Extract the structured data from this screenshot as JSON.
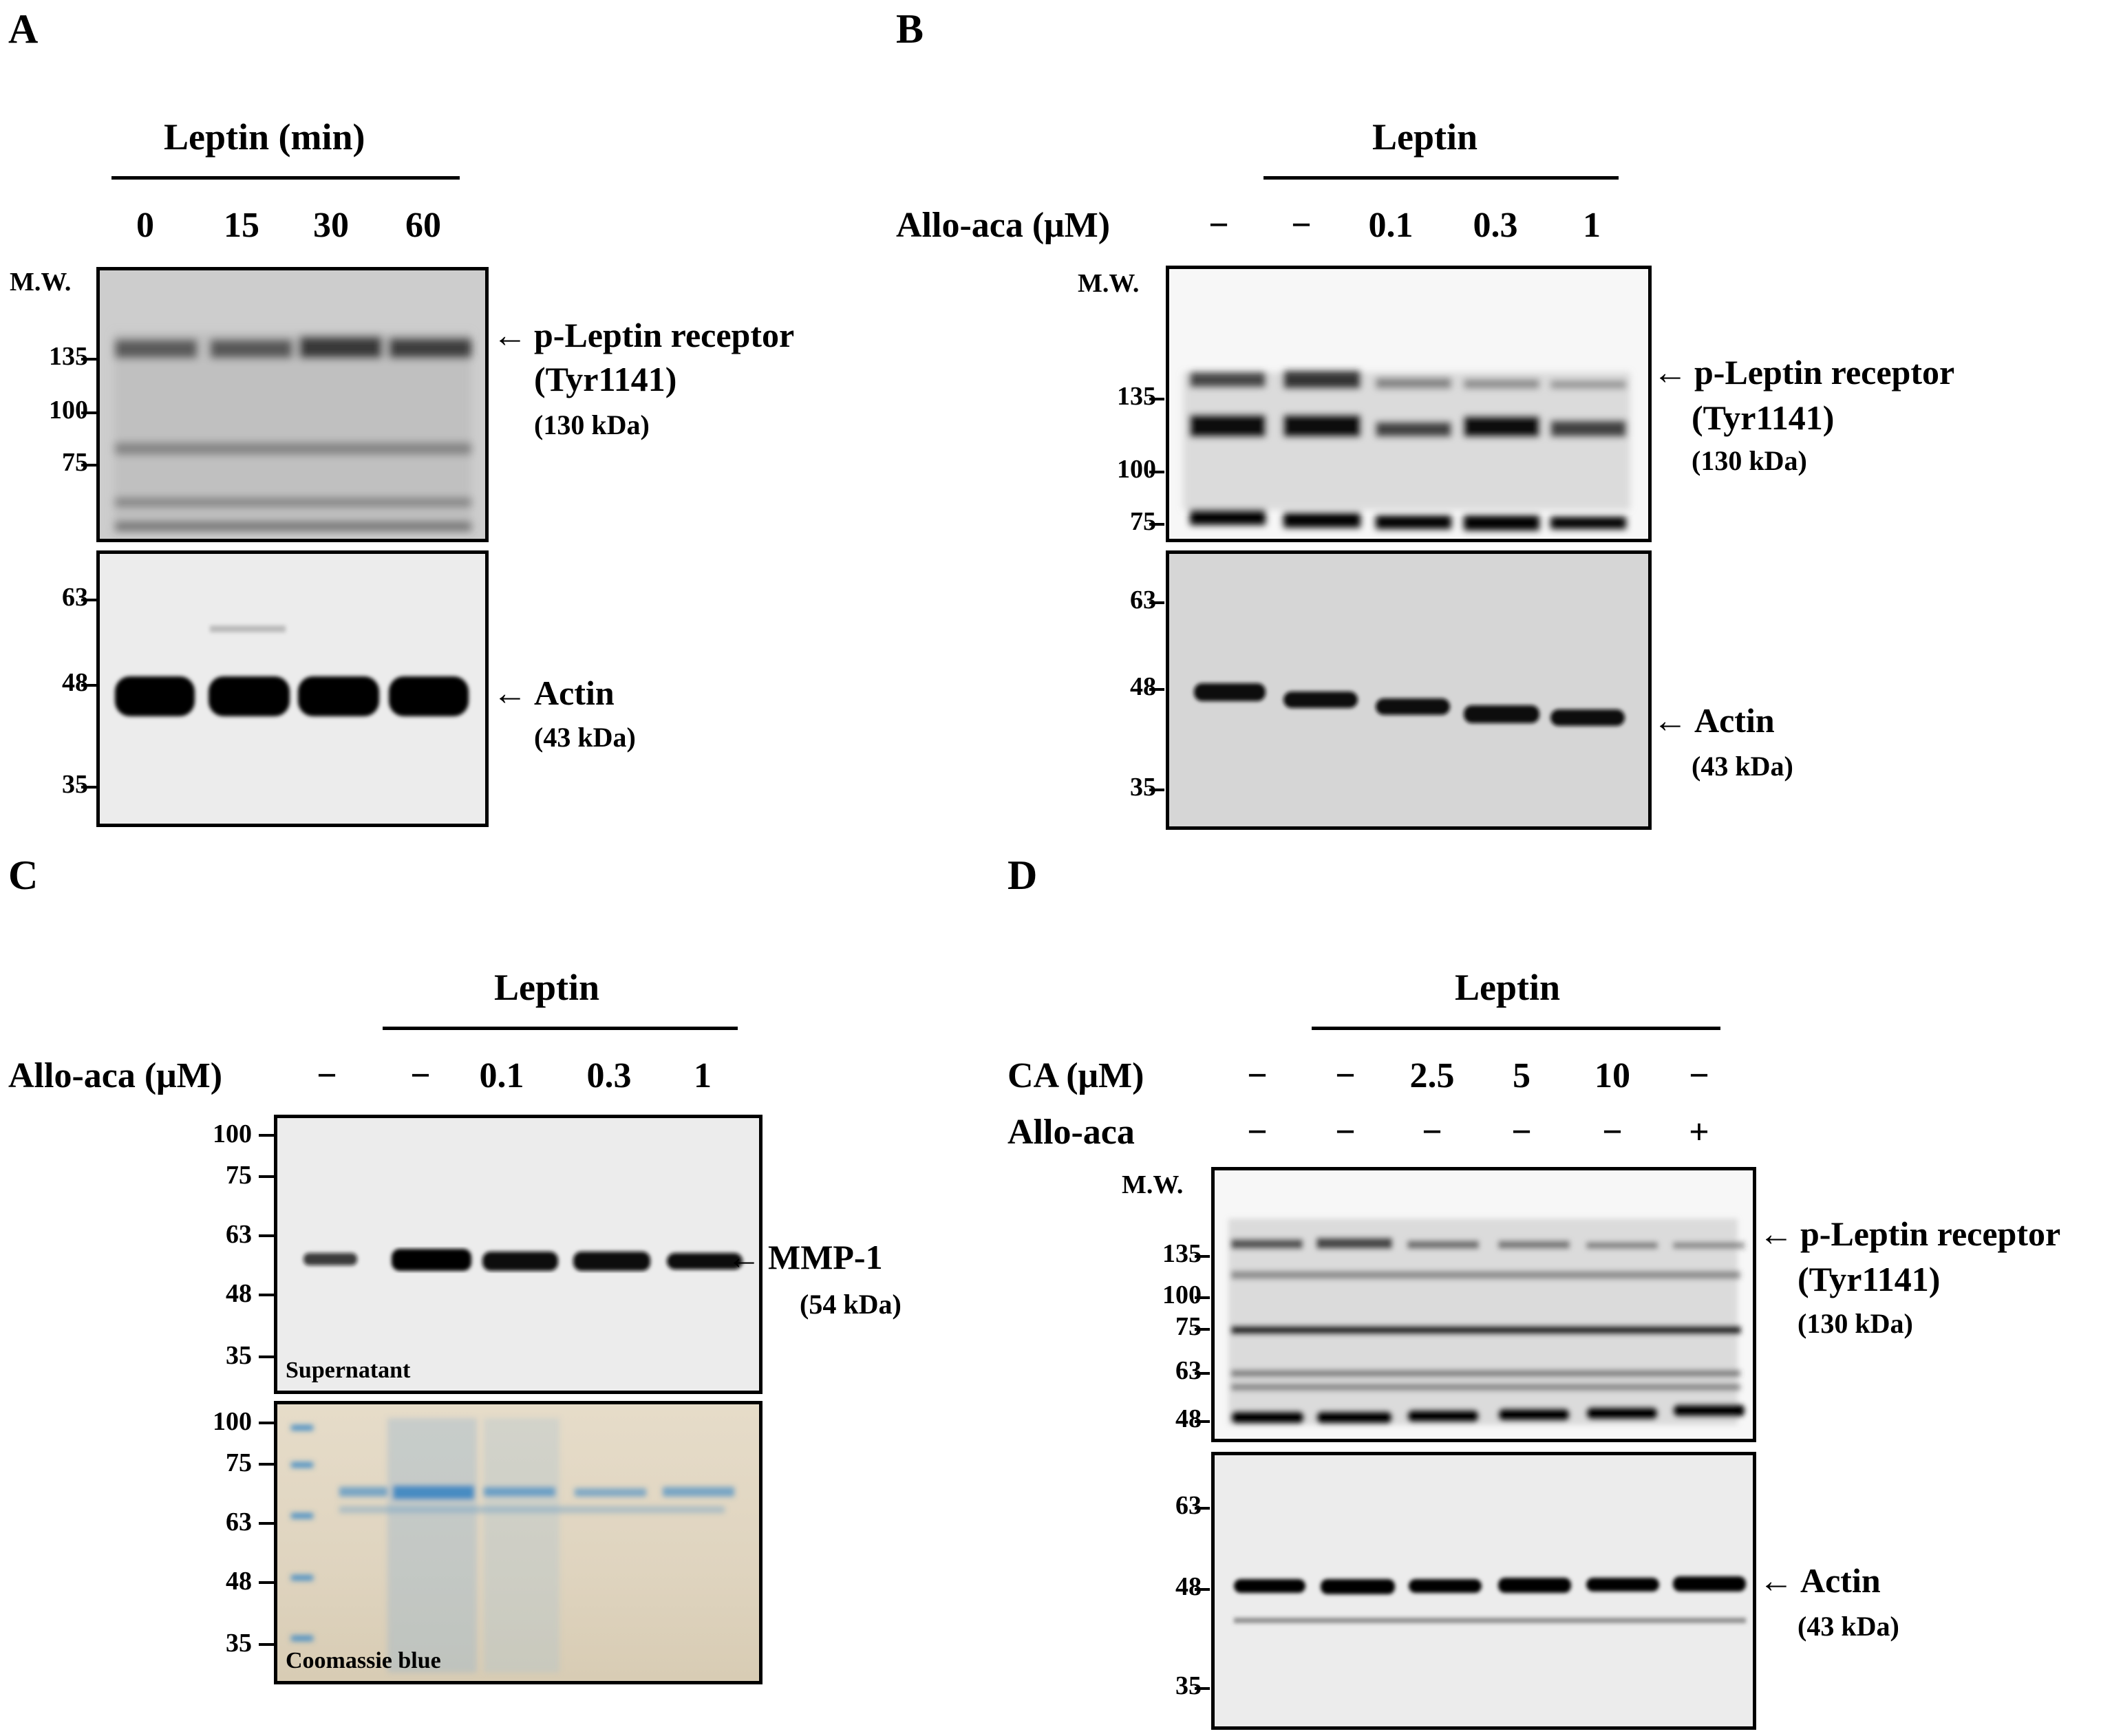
{
  "panels": {
    "A": {
      "letter": "A",
      "header": "Leptin (min)",
      "lanes": [
        "0",
        "15",
        "30",
        "60"
      ],
      "mw_title": "M.W.",
      "mw_top": [
        "135",
        "100",
        "75"
      ],
      "mw_bottom": [
        "63",
        "48",
        "35"
      ],
      "target": {
        "name": "p-Leptin receptor",
        "site": "(Tyr1141)",
        "size": "(130 kDa)"
      },
      "loading": {
        "name": "Actin",
        "size": "(43 kDa)"
      },
      "bands": {
        "p_leptin_receptor_intensity": [
          0.7,
          0.75,
          0.85,
          0.82
        ],
        "actin_intensity": [
          1,
          1,
          1,
          1
        ]
      }
    },
    "B": {
      "letter": "B",
      "header": "Leptin",
      "condition_label": "Allo-aca (μM)",
      "lanes": [
        "−",
        "−",
        "0.1",
        "0.3",
        "1"
      ],
      "mw_title": "M.W.",
      "mw_top": [
        "135",
        "100",
        "75"
      ],
      "mw_bottom": [
        "63",
        "48",
        "35"
      ],
      "target": {
        "name": "p-Leptin receptor",
        "site": "(Tyr1141)",
        "size": "(130 kDa)"
      },
      "loading": {
        "name": "Actin",
        "size": "(43 kDa)"
      },
      "bands": {
        "p_leptin_receptor_intensity": [
          0.8,
          0.85,
          0.45,
          0.4,
          0.35
        ],
        "actin_intensity": [
          1,
          1,
          1,
          1,
          1
        ]
      }
    },
    "C": {
      "letter": "C",
      "header": "Leptin",
      "condition_label": "Allo-aca (μM)",
      "lanes": [
        "−",
        "−",
        "0.1",
        "0.3",
        "1"
      ],
      "mw_top": [
        "100",
        "75",
        "63",
        "48",
        "35"
      ],
      "mw_bottom": [
        "100",
        "75",
        "63",
        "48",
        "35"
      ],
      "top_label": "Supernatant",
      "bottom_label": "Coomassie blue",
      "target": {
        "name": "MMP-1",
        "size": "(54 kDa)"
      },
      "bands": {
        "mmp1_intensity": [
          0.55,
          1,
          0.85,
          0.85,
          0.8
        ]
      },
      "colors": {
        "coomassie_band": "#4a8fc4",
        "coomassie_bg": "#e2d7c2"
      }
    },
    "D": {
      "letter": "D",
      "header": "Leptin",
      "condition_label_1": "CA (μM)",
      "condition_label_2": "Allo-aca",
      "lanes_row1": [
        "−",
        "−",
        "2.5",
        "5",
        "10",
        "−"
      ],
      "lanes_row2": [
        "−",
        "−",
        "−",
        "−",
        "−",
        "+"
      ],
      "mw_title": "M.W.",
      "mw_top": [
        "135",
        "100",
        "75",
        "63",
        "48"
      ],
      "mw_bottom": [
        "63",
        "48",
        "35"
      ],
      "target": {
        "name": "p-Leptin receptor",
        "site": "(Tyr1141)",
        "size": "(130 kDa)"
      },
      "loading": {
        "name": "Actin",
        "size": "(43 kDa)"
      },
      "bands": {
        "p_leptin_receptor_intensity": [
          0.7,
          0.75,
          0.6,
          0.55,
          0.5,
          0.45
        ],
        "actin_intensity": [
          1,
          1,
          1,
          1,
          1,
          1
        ]
      }
    }
  },
  "arrow_glyph": "←"
}
